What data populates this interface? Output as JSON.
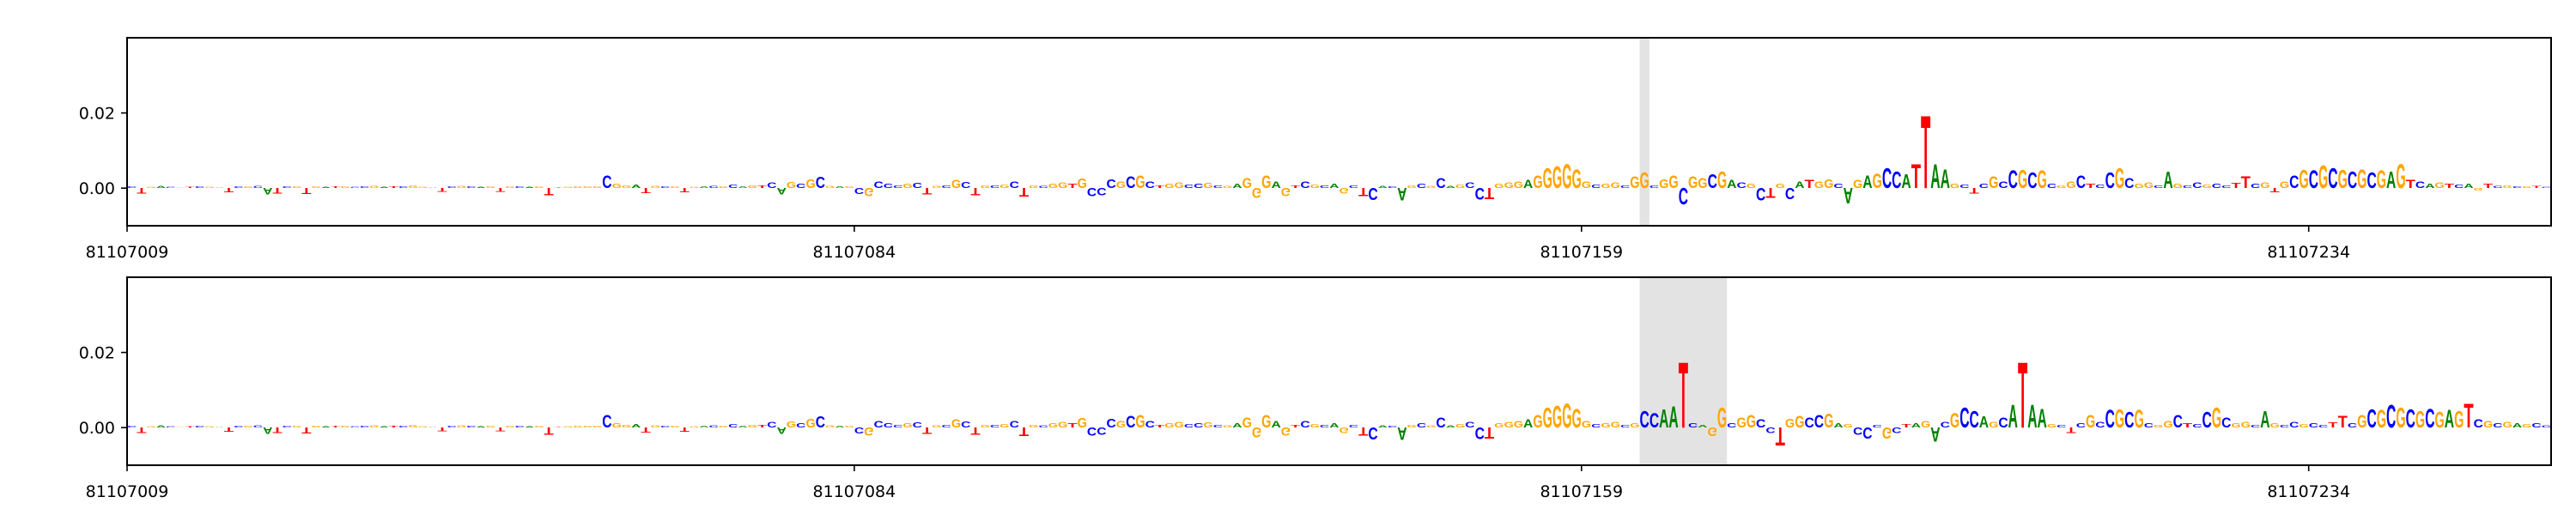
{
  "chart_data": [
    {
      "type": "logo",
      "colors": {
        "A": "#008000",
        "C": "#0000ff",
        "G": "#ffa500",
        "T": "#ff0000"
      },
      "xlim": [
        81107009,
        81107259
      ],
      "xticks": [
        81107009,
        81107084,
        81107159,
        81107234
      ],
      "ylim": [
        -0.01,
        0.04
      ],
      "yticks": [
        {
          "value": 0,
          "label": "0.00"
        },
        {
          "value": 0.02,
          "label": "0.02"
        }
      ],
      "highlight": [
        81107165,
        81107166
      ],
      "letters": [
        "C",
        "T",
        "G",
        "A",
        "C",
        "G",
        "T",
        "C",
        "G",
        "A",
        "T",
        "C",
        "G",
        "C",
        "A",
        "T",
        "C",
        "G",
        "T",
        "G",
        "A",
        "T",
        "G",
        "C",
        "C",
        "G",
        "A",
        "T",
        "C",
        "G",
        "G",
        "A",
        "T",
        "C",
        "G",
        "C",
        "A",
        "G",
        "T",
        "G",
        "C",
        "A",
        "G",
        "T",
        "T",
        "G",
        "G",
        "G",
        "G",
        "C",
        "G",
        "G",
        "A",
        "T",
        "G",
        "C",
        "G",
        "T",
        "G",
        "A",
        "C",
        "G",
        "C",
        "A",
        "G",
        "T",
        "C",
        "A",
        "G",
        "C",
        "G",
        "C",
        "G",
        "A",
        "G",
        "C",
        "G",
        "C",
        "C",
        "C",
        "G",
        "C",
        "T",
        "G",
        "C",
        "G",
        "C",
        "T",
        "G",
        "C",
        "G",
        "C",
        "T",
        "G",
        "C",
        "G",
        "G",
        "T",
        "G",
        "C",
        "C",
        "C",
        "G",
        "C",
        "G",
        "C",
        "T",
        "G",
        "G",
        "C",
        "C",
        "G",
        "C",
        "G",
        "A",
        "G",
        "G",
        "G",
        "A",
        "G",
        "T",
        "C",
        "G",
        "C",
        "A",
        "G",
        "C",
        "T",
        "C",
        "A",
        "C",
        "A",
        "G",
        "C",
        "G",
        "C",
        "A",
        "G",
        "C",
        "C",
        "T",
        "G",
        "G",
        "G",
        "A",
        "G",
        "G",
        "G",
        "G",
        "G",
        "G",
        "C",
        "G",
        "G",
        "C",
        "G",
        "G",
        "C",
        "G",
        "G",
        "C",
        "G",
        "G",
        "C",
        "G",
        "A",
        "C",
        "G",
        "C",
        "T",
        "G",
        "C",
        "A",
        "T",
        "G",
        "G",
        "C",
        "A",
        "G",
        "A",
        "G",
        "C",
        "C",
        "A",
        "T",
        "T",
        "A",
        "A",
        "G",
        "C",
        "T",
        "C",
        "G",
        "C",
        "C",
        "G",
        "C",
        "G",
        "C",
        "G",
        "G",
        "C",
        "T",
        "C",
        "C",
        "G",
        "C",
        "G",
        "G",
        "C",
        "A",
        "G",
        "C",
        "C",
        "G",
        "C",
        "C",
        "T",
        "T",
        "C",
        "G",
        "T",
        "G",
        "C",
        "G",
        "C",
        "G",
        "C",
        "G",
        "C",
        "G",
        "C",
        "G",
        "A",
        "G",
        "T",
        "C",
        "A",
        "G",
        "T",
        "C",
        "A",
        "G",
        "T",
        "C",
        "G",
        "C",
        "G",
        "T",
        "C"
      ],
      "values": [
        0.0004,
        -0.0015,
        0.0003,
        0.0006,
        0.0003,
        0.0002,
        0.0003,
        0.0004,
        0.0003,
        0.0002,
        -0.0012,
        0.0004,
        0.0005,
        0.0006,
        -0.0018,
        -0.0015,
        0.0004,
        0.0005,
        -0.0016,
        0.0004,
        0.0003,
        0.0004,
        0.0005,
        0.0003,
        0.0004,
        0.0006,
        0.0003,
        0.0005,
        0.0004,
        0.0008,
        0.0003,
        0.0002,
        -0.001,
        0.0005,
        0.0006,
        0.0004,
        0.0003,
        0.0004,
        -0.001,
        0.0005,
        0.0004,
        0.0003,
        0.0004,
        -0.002,
        0.0002,
        0.0003,
        0.0004,
        0.0005,
        0.0004,
        0.0035,
        0.0012,
        0.0008,
        0.0009,
        -0.0014,
        0.0006,
        0.0004,
        0.0005,
        -0.0012,
        0.0003,
        0.0004,
        0.0006,
        0.0005,
        0.0009,
        0.0004,
        0.0007,
        0.0008,
        0.0015,
        -0.0018,
        0.0017,
        0.0012,
        0.0025,
        0.003,
        0.0006,
        0.0004,
        0.0005,
        -0.0016,
        -0.0022,
        0.0018,
        0.0012,
        0.0008,
        0.0012,
        0.0014,
        -0.0018,
        0.0006,
        0.0008,
        0.0022,
        0.0016,
        -0.002,
        0.0008,
        0.0007,
        0.0009,
        0.0018,
        -0.0024,
        0.0008,
        0.0006,
        0.0012,
        0.0015,
        0.0012,
        0.0026,
        -0.0022,
        -0.002,
        0.0025,
        0.0018,
        0.0032,
        0.0035,
        0.0018,
        0.0008,
        0.0012,
        0.0015,
        0.0009,
        0.0012,
        0.0014,
        0.0008,
        0.0006,
        0.0012,
        0.0028,
        -0.0028,
        0.0035,
        0.0018,
        -0.0022,
        0.0008,
        0.0018,
        0.0009,
        0.0007,
        0.0012,
        -0.0015,
        0.0008,
        -0.0022,
        -0.0034,
        0.0006,
        0.0005,
        -0.0035,
        0.0008,
        0.0012,
        0.0006,
        0.0028,
        0.0006,
        0.0009,
        0.0015,
        -0.0032,
        -0.003,
        0.0012,
        0.0015,
        0.0018,
        0.0022,
        0.0035,
        0.0055,
        0.006,
        0.0065,
        0.0052,
        0.0018,
        0.0009,
        0.0012,
        0.0015,
        0.0008,
        0.0032,
        0.0042,
        0.0008,
        0.0025,
        0.0035,
        -0.0045,
        0.0032,
        0.0028,
        0.0038,
        0.0045,
        0.0022,
        0.0015,
        0.0012,
        -0.0035,
        -0.0028,
        0.0012,
        -0.003,
        0.0018,
        0.0022,
        0.0018,
        0.0025,
        0.0012,
        -0.0042,
        0.0022,
        0.0035,
        0.004,
        0.0055,
        0.0045,
        0.0038,
        0.0065,
        0.02,
        0.0065,
        0.0052,
        0.0012,
        0.0009,
        -0.0015,
        0.0012,
        0.0032,
        0.0018,
        0.0048,
        0.005,
        0.0042,
        0.0048,
        0.0012,
        0.0008,
        0.0018,
        0.0035,
        0.0012,
        0.0009,
        0.0042,
        0.0055,
        0.0028,
        0.0012,
        0.0015,
        0.0008,
        0.0045,
        0.0012,
        0.0008,
        0.0015,
        0.0009,
        0.0012,
        0.0008,
        0.0014,
        0.0032,
        0.0012,
        0.0015,
        -0.0012,
        0.0018,
        0.0035,
        0.005,
        0.0048,
        0.0062,
        0.0055,
        0.005,
        0.0045,
        0.0052,
        0.0042,
        0.0048,
        0.0045,
        0.0065,
        0.0022,
        0.0018,
        0.0012,
        0.0015,
        0.0012,
        0.0009,
        0.0012,
        -0.0008,
        0.0012,
        0.0006,
        0.0008,
        0.0005,
        0.0004,
        0.0006,
        0.0003
      ]
    },
    {
      "type": "logo",
      "colors": {
        "A": "#008000",
        "C": "#0000ff",
        "G": "#ffa500",
        "T": "#ff0000"
      },
      "xlim": [
        81107009,
        81107259
      ],
      "xticks": [
        81107009,
        81107084,
        81107159,
        81107234
      ],
      "ylim": [
        -0.01,
        0.04
      ],
      "yticks": [
        {
          "value": 0,
          "label": "0.00"
        },
        {
          "value": 0.02,
          "label": "0.02"
        }
      ],
      "highlight": [
        81107165,
        81107174
      ],
      "letters": [
        "C",
        "T",
        "G",
        "A",
        "C",
        "G",
        "T",
        "C",
        "G",
        "A",
        "T",
        "C",
        "G",
        "C",
        "A",
        "T",
        "C",
        "G",
        "T",
        "G",
        "A",
        "T",
        "G",
        "C",
        "C",
        "G",
        "A",
        "T",
        "C",
        "G",
        "G",
        "A",
        "T",
        "C",
        "G",
        "C",
        "A",
        "G",
        "T",
        "G",
        "C",
        "A",
        "G",
        "T",
        "T",
        "G",
        "G",
        "G",
        "G",
        "C",
        "G",
        "G",
        "A",
        "T",
        "G",
        "C",
        "G",
        "T",
        "G",
        "A",
        "C",
        "G",
        "C",
        "A",
        "G",
        "T",
        "C",
        "A",
        "G",
        "C",
        "G",
        "C",
        "G",
        "A",
        "G",
        "C",
        "G",
        "C",
        "C",
        "C",
        "G",
        "C",
        "T",
        "G",
        "C",
        "G",
        "C",
        "T",
        "G",
        "C",
        "G",
        "C",
        "T",
        "G",
        "C",
        "G",
        "G",
        "T",
        "G",
        "C",
        "C",
        "C",
        "G",
        "C",
        "G",
        "C",
        "T",
        "G",
        "G",
        "C",
        "C",
        "G",
        "C",
        "G",
        "A",
        "G",
        "G",
        "G",
        "A",
        "G",
        "T",
        "C",
        "G",
        "C",
        "A",
        "G",
        "C",
        "T",
        "C",
        "A",
        "C",
        "A",
        "G",
        "C",
        "G",
        "C",
        "A",
        "G",
        "C",
        "C",
        "T",
        "G",
        "G",
        "G",
        "A",
        "G",
        "G",
        "G",
        "G",
        "G",
        "G",
        "C",
        "G",
        "G",
        "C",
        "G",
        "C",
        "C",
        "A",
        "A",
        "T",
        "C",
        "A",
        "G",
        "G",
        "C",
        "G",
        "G",
        "C",
        "C",
        "T",
        "G",
        "G",
        "C",
        "C",
        "G",
        "A",
        "G",
        "C",
        "C",
        "C",
        "G",
        "C",
        "T",
        "A",
        "G",
        "A",
        "C",
        "G",
        "C",
        "C",
        "A",
        "G",
        "C",
        "A",
        "T",
        "A",
        "A",
        "G",
        "C",
        "T",
        "C",
        "G",
        "C",
        "C",
        "G",
        "C",
        "G",
        "C",
        "G",
        "G",
        "C",
        "T",
        "C",
        "C",
        "G",
        "C",
        "G",
        "G",
        "C",
        "A",
        "G",
        "C",
        "C",
        "G",
        "C",
        "C",
        "T",
        "T",
        "C",
        "G",
        "C",
        "G",
        "C",
        "G",
        "C",
        "G",
        "C",
        "G",
        "A",
        "G",
        "T",
        "C",
        "G",
        "C",
        "G",
        "A",
        "G",
        "C",
        "C"
      ],
      "values": [
        0.0004,
        -0.0015,
        0.0003,
        0.0006,
        0.0003,
        0.0002,
        0.0003,
        0.0004,
        0.0003,
        0.0002,
        -0.0012,
        0.0004,
        0.0005,
        0.0006,
        -0.0018,
        -0.0015,
        0.0004,
        0.0005,
        -0.0016,
        0.0004,
        0.0003,
        0.0004,
        0.0005,
        0.0003,
        0.0004,
        0.0006,
        0.0003,
        0.0005,
        0.0004,
        0.0008,
        0.0003,
        0.0002,
        -0.001,
        0.0005,
        0.0006,
        0.0004,
        0.0003,
        0.0004,
        -0.001,
        0.0005,
        0.0004,
        0.0003,
        0.0004,
        -0.002,
        0.0002,
        0.0003,
        0.0004,
        0.0005,
        0.0004,
        0.0035,
        0.0012,
        0.0008,
        0.0009,
        -0.0014,
        0.0006,
        0.0004,
        0.0005,
        -0.0012,
        0.0003,
        0.0004,
        0.0006,
        0.0005,
        0.0009,
        0.0004,
        0.0007,
        0.0008,
        0.0015,
        -0.0018,
        0.0017,
        0.0012,
        0.0025,
        0.003,
        0.0006,
        0.0004,
        0.0005,
        -0.0016,
        -0.0022,
        0.0018,
        0.0012,
        0.0008,
        0.0012,
        0.0014,
        -0.0018,
        0.0006,
        0.0008,
        0.0022,
        0.0016,
        -0.002,
        0.0008,
        0.0007,
        0.0009,
        0.0018,
        -0.0024,
        0.0008,
        0.0006,
        0.0012,
        0.0015,
        0.0012,
        0.0026,
        -0.0022,
        -0.002,
        0.0025,
        0.0018,
        0.0032,
        0.0035,
        0.0018,
        0.0008,
        0.0012,
        0.0015,
        0.0009,
        0.0012,
        0.0014,
        0.0008,
        0.0006,
        0.0012,
        0.0028,
        -0.0028,
        0.0035,
        0.0018,
        -0.0022,
        0.0008,
        0.0018,
        0.0009,
        0.0007,
        0.0012,
        -0.0015,
        0.0008,
        -0.0022,
        -0.0034,
        0.0006,
        0.0005,
        -0.0035,
        0.0008,
        0.0012,
        0.0006,
        0.0028,
        0.0006,
        0.0009,
        0.0015,
        -0.0032,
        -0.003,
        0.0012,
        0.0015,
        0.0018,
        0.0022,
        0.0035,
        0.0055,
        0.006,
        0.0065,
        0.0052,
        0.0018,
        0.0009,
        0.0012,
        0.0015,
        0.0008,
        0.0012,
        0.0045,
        0.004,
        0.005,
        0.0058,
        0.018,
        0.0012,
        0.0008,
        -0.0025,
        0.0055,
        0.0012,
        0.0028,
        0.0035,
        0.0022,
        -0.0015,
        -0.005,
        0.0025,
        0.0032,
        0.0028,
        0.0035,
        0.0038,
        0.0012,
        0.0009,
        -0.002,
        -0.003,
        0.0008,
        -0.003,
        -0.0015,
        0.0009,
        0.0012,
        0.0018,
        -0.004,
        0.0015,
        0.004,
        0.0055,
        0.0045,
        0.003,
        0.0015,
        0.0028,
        0.0062,
        0.018,
        0.0062,
        0.0052,
        0.0009,
        0.0008,
        -0.0015,
        0.0012,
        0.0035,
        0.0015,
        0.0048,
        0.005,
        0.0042,
        0.0048,
        0.0012,
        0.0008,
        0.0018,
        0.0035,
        0.0012,
        0.0009,
        0.0042,
        0.0055,
        0.0028,
        0.0012,
        0.0015,
        0.0008,
        0.0045,
        0.0012,
        0.0008,
        0.0015,
        0.0009,
        0.0012,
        0.0008,
        0.0014,
        0.0032,
        0.0012,
        0.0035,
        0.005,
        0.0048,
        0.0062,
        0.0055,
        0.005,
        0.0045,
        0.0052,
        0.0042,
        0.0048,
        0.0045,
        0.0065,
        0.0022,
        0.0018,
        0.0012,
        0.0015,
        0.0012,
        0.0009,
        0.0012,
        0.0006
      ]
    }
  ]
}
